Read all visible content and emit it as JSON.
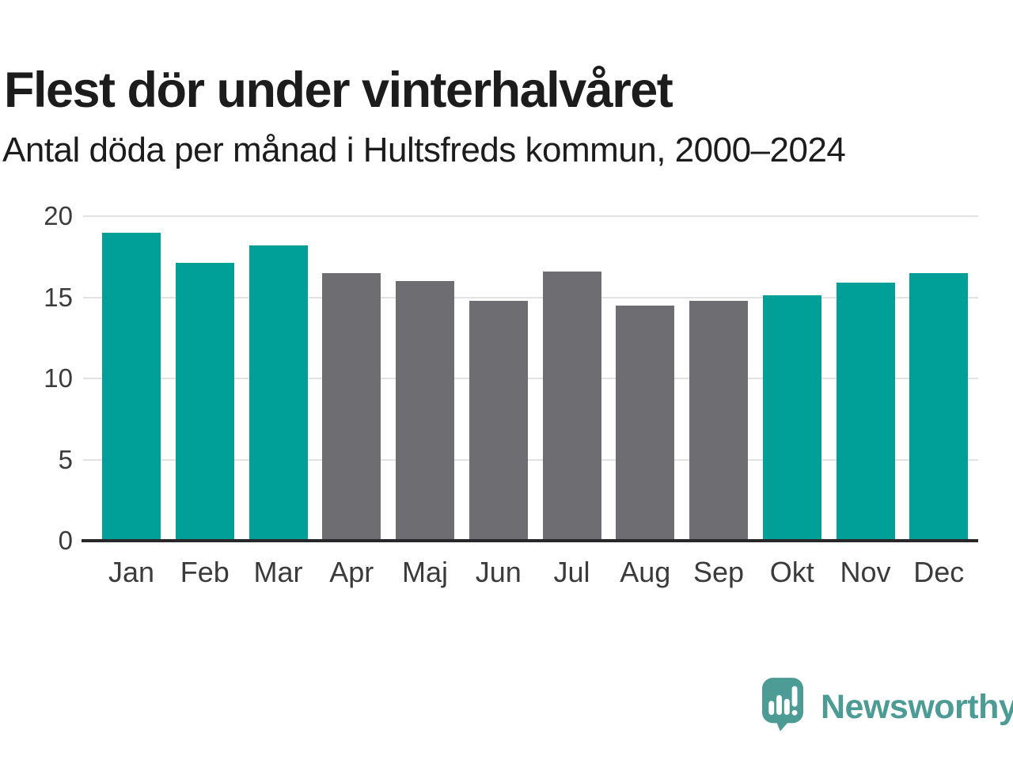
{
  "header": {
    "title": "Flest dör under vinterhalvåret",
    "subtitle": "Antal döda per månad i Hultsfreds kommun, 2000–2024"
  },
  "chart_data": {
    "type": "bar",
    "title": "Flest dör under vinterhalvåret",
    "subtitle": "Antal döda per månad i Hultsfreds kommun, 2000–2024",
    "categories": [
      "Jan",
      "Feb",
      "Mar",
      "Apr",
      "Maj",
      "Jun",
      "Jul",
      "Aug",
      "Sep",
      "Okt",
      "Nov",
      "Dec"
    ],
    "values": [
      19.0,
      17.1,
      18.2,
      16.5,
      16.0,
      14.8,
      16.6,
      14.5,
      14.8,
      15.1,
      15.9,
      16.5
    ],
    "bar_colors": [
      "#00A099",
      "#00A099",
      "#00A099",
      "#6D6D72",
      "#6D6D72",
      "#6D6D72",
      "#6D6D72",
      "#6D6D72",
      "#6D6D72",
      "#00A099",
      "#00A099",
      "#00A099"
    ],
    "highlighted_categories": [
      "Jan",
      "Feb",
      "Mar",
      "Okt",
      "Nov",
      "Dec"
    ],
    "xlabel": "",
    "ylabel": "",
    "ylim": [
      0,
      20
    ],
    "yticks": [
      0,
      5,
      10,
      15,
      20
    ],
    "grid": "horizontal-gridlines",
    "legend": "none",
    "colors": {
      "highlight": "#00A099",
      "muted": "#6D6D72",
      "gridline": "#E2E2E2",
      "axis": "#28282B",
      "title_text": "#1C1C1C",
      "tick_text": "#3B3B3B"
    }
  },
  "footer": {
    "brand": "Newsworthy",
    "brand_color": "#4C9B95",
    "logo_icon": "newsworthy-speech-bubble-bar-chart-icon"
  }
}
